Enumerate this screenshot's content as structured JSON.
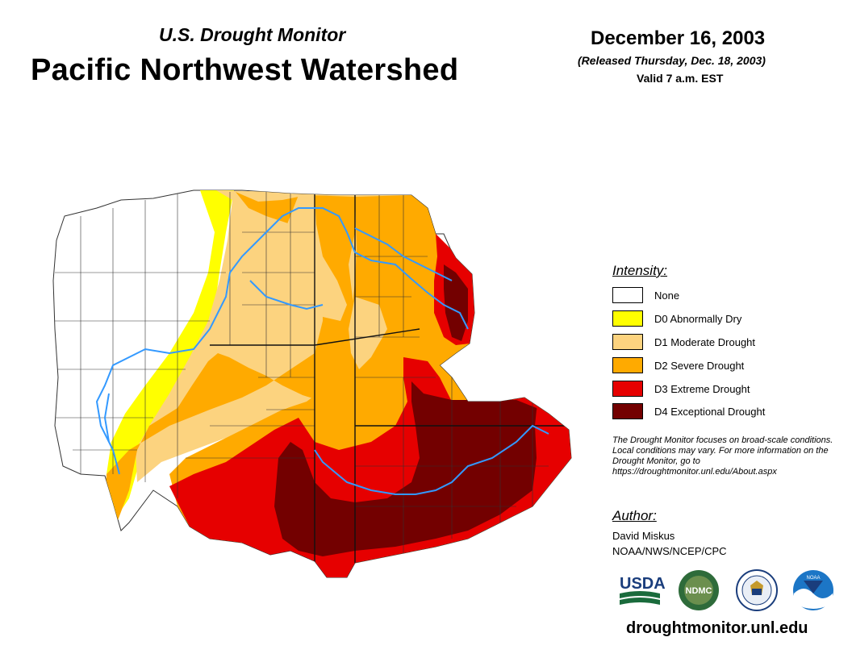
{
  "header": {
    "subtitle": "U.S. Drought Monitor",
    "title": "Pacific Northwest Watershed",
    "date": "December 16, 2003",
    "released": "(Released Thursday, Dec. 18, 2003)",
    "valid": "Valid 7 a.m. EST"
  },
  "legend": {
    "title": "Intensity:",
    "items": [
      {
        "label": "None",
        "color": "#ffffff"
      },
      {
        "label": "D0 Abnormally Dry",
        "color": "#ffff00"
      },
      {
        "label": "D1 Moderate Drought",
        "color": "#fcd37f"
      },
      {
        "label": "D2 Severe Drought",
        "color": "#ffaa00"
      },
      {
        "label": "D3 Extreme Drought",
        "color": "#e60000"
      },
      {
        "label": "D4 Exceptional Drought",
        "color": "#730000"
      }
    ]
  },
  "note": "The Drought Monitor focuses on broad-scale conditions. Local conditions may vary. For more information on the Drought Monitor, go to https://droughtmonitor.unl.edu/About.aspx",
  "author": {
    "title": "Author:",
    "name": "David Miskus",
    "org": "NOAA/NWS/NCEP/CPC"
  },
  "logos": {
    "usda": "USDA",
    "ndmc": "NDMC",
    "noaa": "NOAA"
  },
  "footer": {
    "url": "droughtmonitor.unl.edu"
  },
  "colors": {
    "river": "#3399ff",
    "boundary": "#333333"
  }
}
